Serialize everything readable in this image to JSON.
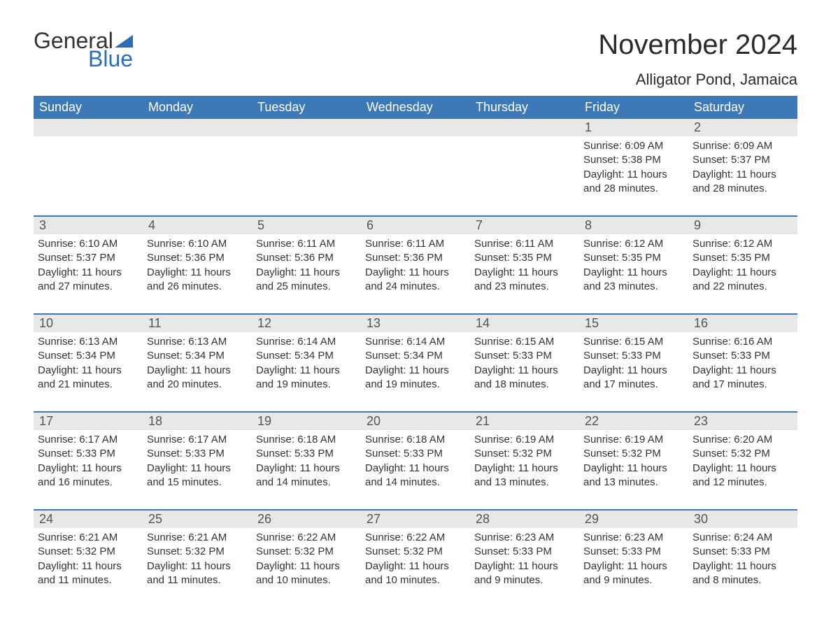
{
  "brand": {
    "word1": "General",
    "word2": "Blue",
    "accent_color": "#2a6db8"
  },
  "header": {
    "title": "November 2024",
    "location": "Alligator Pond, Jamaica"
  },
  "colors": {
    "header_bar": "#3d78b7",
    "row_border": "#3d78b7",
    "daynum_bg": "#e8e8e8",
    "text": "#333333",
    "muted": "#545454"
  },
  "weekdays": [
    "Sunday",
    "Monday",
    "Tuesday",
    "Wednesday",
    "Thursday",
    "Friday",
    "Saturday"
  ],
  "weeks": [
    [
      null,
      null,
      null,
      null,
      null,
      {
        "d": "1",
        "sunrise": "6:09 AM",
        "sunset": "5:38 PM",
        "dl1": "Daylight: 11 hours",
        "dl2": "and 28 minutes."
      },
      {
        "d": "2",
        "sunrise": "6:09 AM",
        "sunset": "5:37 PM",
        "dl1": "Daylight: 11 hours",
        "dl2": "and 28 minutes."
      }
    ],
    [
      {
        "d": "3",
        "sunrise": "6:10 AM",
        "sunset": "5:37 PM",
        "dl1": "Daylight: 11 hours",
        "dl2": "and 27 minutes."
      },
      {
        "d": "4",
        "sunrise": "6:10 AM",
        "sunset": "5:36 PM",
        "dl1": "Daylight: 11 hours",
        "dl2": "and 26 minutes."
      },
      {
        "d": "5",
        "sunrise": "6:11 AM",
        "sunset": "5:36 PM",
        "dl1": "Daylight: 11 hours",
        "dl2": "and 25 minutes."
      },
      {
        "d": "6",
        "sunrise": "6:11 AM",
        "sunset": "5:36 PM",
        "dl1": "Daylight: 11 hours",
        "dl2": "and 24 minutes."
      },
      {
        "d": "7",
        "sunrise": "6:11 AM",
        "sunset": "5:35 PM",
        "dl1": "Daylight: 11 hours",
        "dl2": "and 23 minutes."
      },
      {
        "d": "8",
        "sunrise": "6:12 AM",
        "sunset": "5:35 PM",
        "dl1": "Daylight: 11 hours",
        "dl2": "and 23 minutes."
      },
      {
        "d": "9",
        "sunrise": "6:12 AM",
        "sunset": "5:35 PM",
        "dl1": "Daylight: 11 hours",
        "dl2": "and 22 minutes."
      }
    ],
    [
      {
        "d": "10",
        "sunrise": "6:13 AM",
        "sunset": "5:34 PM",
        "dl1": "Daylight: 11 hours",
        "dl2": "and 21 minutes."
      },
      {
        "d": "11",
        "sunrise": "6:13 AM",
        "sunset": "5:34 PM",
        "dl1": "Daylight: 11 hours",
        "dl2": "and 20 minutes."
      },
      {
        "d": "12",
        "sunrise": "6:14 AM",
        "sunset": "5:34 PM",
        "dl1": "Daylight: 11 hours",
        "dl2": "and 19 minutes."
      },
      {
        "d": "13",
        "sunrise": "6:14 AM",
        "sunset": "5:34 PM",
        "dl1": "Daylight: 11 hours",
        "dl2": "and 19 minutes."
      },
      {
        "d": "14",
        "sunrise": "6:15 AM",
        "sunset": "5:33 PM",
        "dl1": "Daylight: 11 hours",
        "dl2": "and 18 minutes."
      },
      {
        "d": "15",
        "sunrise": "6:15 AM",
        "sunset": "5:33 PM",
        "dl1": "Daylight: 11 hours",
        "dl2": "and 17 minutes."
      },
      {
        "d": "16",
        "sunrise": "6:16 AM",
        "sunset": "5:33 PM",
        "dl1": "Daylight: 11 hours",
        "dl2": "and 17 minutes."
      }
    ],
    [
      {
        "d": "17",
        "sunrise": "6:17 AM",
        "sunset": "5:33 PM",
        "dl1": "Daylight: 11 hours",
        "dl2": "and 16 minutes."
      },
      {
        "d": "18",
        "sunrise": "6:17 AM",
        "sunset": "5:33 PM",
        "dl1": "Daylight: 11 hours",
        "dl2": "and 15 minutes."
      },
      {
        "d": "19",
        "sunrise": "6:18 AM",
        "sunset": "5:33 PM",
        "dl1": "Daylight: 11 hours",
        "dl2": "and 14 minutes."
      },
      {
        "d": "20",
        "sunrise": "6:18 AM",
        "sunset": "5:33 PM",
        "dl1": "Daylight: 11 hours",
        "dl2": "and 14 minutes."
      },
      {
        "d": "21",
        "sunrise": "6:19 AM",
        "sunset": "5:32 PM",
        "dl1": "Daylight: 11 hours",
        "dl2": "and 13 minutes."
      },
      {
        "d": "22",
        "sunrise": "6:19 AM",
        "sunset": "5:32 PM",
        "dl1": "Daylight: 11 hours",
        "dl2": "and 13 minutes."
      },
      {
        "d": "23",
        "sunrise": "6:20 AM",
        "sunset": "5:32 PM",
        "dl1": "Daylight: 11 hours",
        "dl2": "and 12 minutes."
      }
    ],
    [
      {
        "d": "24",
        "sunrise": "6:21 AM",
        "sunset": "5:32 PM",
        "dl1": "Daylight: 11 hours",
        "dl2": "and 11 minutes."
      },
      {
        "d": "25",
        "sunrise": "6:21 AM",
        "sunset": "5:32 PM",
        "dl1": "Daylight: 11 hours",
        "dl2": "and 11 minutes."
      },
      {
        "d": "26",
        "sunrise": "6:22 AM",
        "sunset": "5:32 PM",
        "dl1": "Daylight: 11 hours",
        "dl2": "and 10 minutes."
      },
      {
        "d": "27",
        "sunrise": "6:22 AM",
        "sunset": "5:32 PM",
        "dl1": "Daylight: 11 hours",
        "dl2": "and 10 minutes."
      },
      {
        "d": "28",
        "sunrise": "6:23 AM",
        "sunset": "5:33 PM",
        "dl1": "Daylight: 11 hours",
        "dl2": "and 9 minutes."
      },
      {
        "d": "29",
        "sunrise": "6:23 AM",
        "sunset": "5:33 PM",
        "dl1": "Daylight: 11 hours",
        "dl2": "and 9 minutes."
      },
      {
        "d": "30",
        "sunrise": "6:24 AM",
        "sunset": "5:33 PM",
        "dl1": "Daylight: 11 hours",
        "dl2": "and 8 minutes."
      }
    ]
  ],
  "labels": {
    "sunrise": "Sunrise: ",
    "sunset": "Sunset: "
  }
}
